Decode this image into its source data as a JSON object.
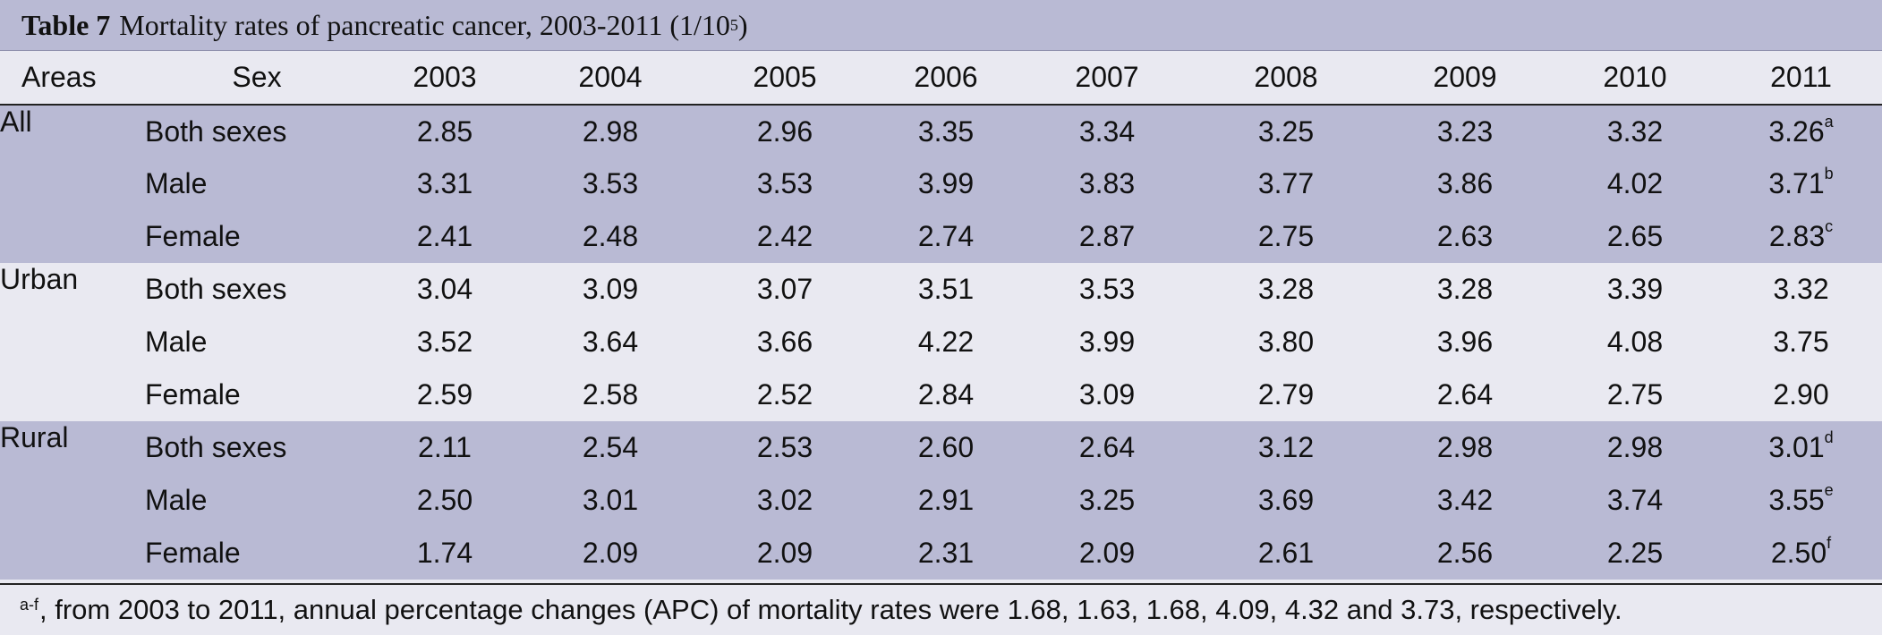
{
  "title": {
    "label": "Table 7",
    "text": "Mortality rates of pancreatic cancer, 2003-2011 (1/10",
    "sup": "5",
    "close": ")"
  },
  "columns": {
    "area": "Areas",
    "sex": "Sex",
    "years": [
      "2003",
      "2004",
      "2005",
      "2006",
      "2007",
      "2008",
      "2009",
      "2010",
      "2011"
    ]
  },
  "groups": [
    {
      "area": "All",
      "rows": [
        {
          "sex": "Both sexes",
          "values": [
            "2.85",
            "2.98",
            "2.96",
            "3.35",
            "3.34",
            "3.25",
            "3.23",
            "3.32",
            "3.26"
          ],
          "note": "a"
        },
        {
          "sex": "Male",
          "values": [
            "3.31",
            "3.53",
            "3.53",
            "3.99",
            "3.83",
            "3.77",
            "3.86",
            "4.02",
            "3.71"
          ],
          "note": "b"
        },
        {
          "sex": "Female",
          "values": [
            "2.41",
            "2.48",
            "2.42",
            "2.74",
            "2.87",
            "2.75",
            "2.63",
            "2.65",
            "2.83"
          ],
          "note": "c"
        }
      ]
    },
    {
      "area": "Urban",
      "rows": [
        {
          "sex": "Both sexes",
          "values": [
            "3.04",
            "3.09",
            "3.07",
            "3.51",
            "3.53",
            "3.28",
            "3.28",
            "3.39",
            "3.32"
          ],
          "note": ""
        },
        {
          "sex": "Male",
          "values": [
            "3.52",
            "3.64",
            "3.66",
            "4.22",
            "3.99",
            "3.80",
            "3.96",
            "4.08",
            "3.75"
          ],
          "note": ""
        },
        {
          "sex": "Female",
          "values": [
            "2.59",
            "2.58",
            "2.52",
            "2.84",
            "3.09",
            "2.79",
            "2.64",
            "2.75",
            "2.90"
          ],
          "note": ""
        }
      ]
    },
    {
      "area": "Rural",
      "rows": [
        {
          "sex": "Both sexes",
          "values": [
            "2.11",
            "2.54",
            "2.53",
            "2.60",
            "2.64",
            "3.12",
            "2.98",
            "2.98",
            "3.01"
          ],
          "note": "d"
        },
        {
          "sex": "Male",
          "values": [
            "2.50",
            "3.01",
            "3.02",
            "2.91",
            "3.25",
            "3.69",
            "3.42",
            "3.74",
            "3.55"
          ],
          "note": "e"
        },
        {
          "sex": "Female",
          "values": [
            "1.74",
            "2.09",
            "2.09",
            "2.31",
            "2.09",
            "2.61",
            "2.56",
            "2.25",
            "2.50"
          ],
          "note": "f"
        }
      ]
    }
  ],
  "footnote": {
    "marker": "a-f",
    "text": ", from 2003 to 2011, annual percentage changes (APC) of mortality rates were 1.68, 1.63, 1.68, 4.09, 4.32 and 3.73, respectively."
  }
}
